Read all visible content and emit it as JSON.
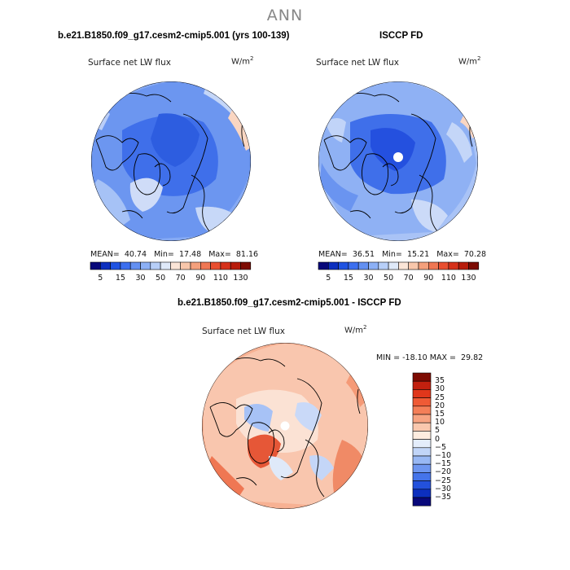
{
  "page_title": "ANN",
  "panels": [
    {
      "title": "b.e21.B1850.f09_g17.cesm2-cmip5.001 (yrs 100-139)",
      "variable": "Surface net LW flux",
      "units": "W/m",
      "units_exp": "2",
      "stats": {
        "mean_label": "MEAN=",
        "mean": "40.74",
        "min_label": "Min=",
        "min": "17.48",
        "max_label": "Max=",
        "max": "81.16"
      }
    },
    {
      "title": "ISCCP FD",
      "variable": "Surface net LW flux",
      "units": "W/m",
      "units_exp": "2",
      "stats": {
        "mean_label": "MEAN=",
        "mean": "36.51",
        "min_label": "Min=",
        "min": "15.21",
        "max_label": "Max=",
        "max": "70.28"
      }
    },
    {
      "title": "b.e21.B1850.f09_g17.cesm2-cmip5.001 - ISCCP FD",
      "variable": "Surface net LW flux",
      "units": "W/m",
      "units_exp": "2",
      "stats_text": "MIN = -18.10 MAX =  29.82"
    }
  ],
  "abs_colorbar": {
    "colors": [
      "#08087a",
      "#0c2fbf",
      "#1f53e2",
      "#3c6fef",
      "#6390f2",
      "#8cb0f6",
      "#b7cff8",
      "#dfe9f9",
      "#fbe5d7",
      "#f8c7ab",
      "#f4a07c",
      "#ef7753",
      "#e84f30",
      "#d6311a",
      "#b81c0b",
      "#7d0b02"
    ],
    "labels": [
      "5",
      "15",
      "30",
      "50",
      "70",
      "90",
      "110",
      "130"
    ]
  },
  "diff_colorbar": {
    "colors": [
      "#7d0b02",
      "#c2200f",
      "#e0371b",
      "#ef5a35",
      "#f47f58",
      "#f7a482",
      "#fac8ae",
      "#fdecdf",
      "#e4edfb",
      "#c1d5f8",
      "#98b8f4",
      "#6e96f0",
      "#4574ea",
      "#2351dc",
      "#0c2fbf",
      "#08087a"
    ],
    "labels": [
      "35",
      "30",
      "25",
      "20",
      "15",
      "10",
      "5",
      "0",
      "−5",
      "−10",
      "−15",
      "−20",
      "−25",
      "−30",
      "−35"
    ]
  }
}
